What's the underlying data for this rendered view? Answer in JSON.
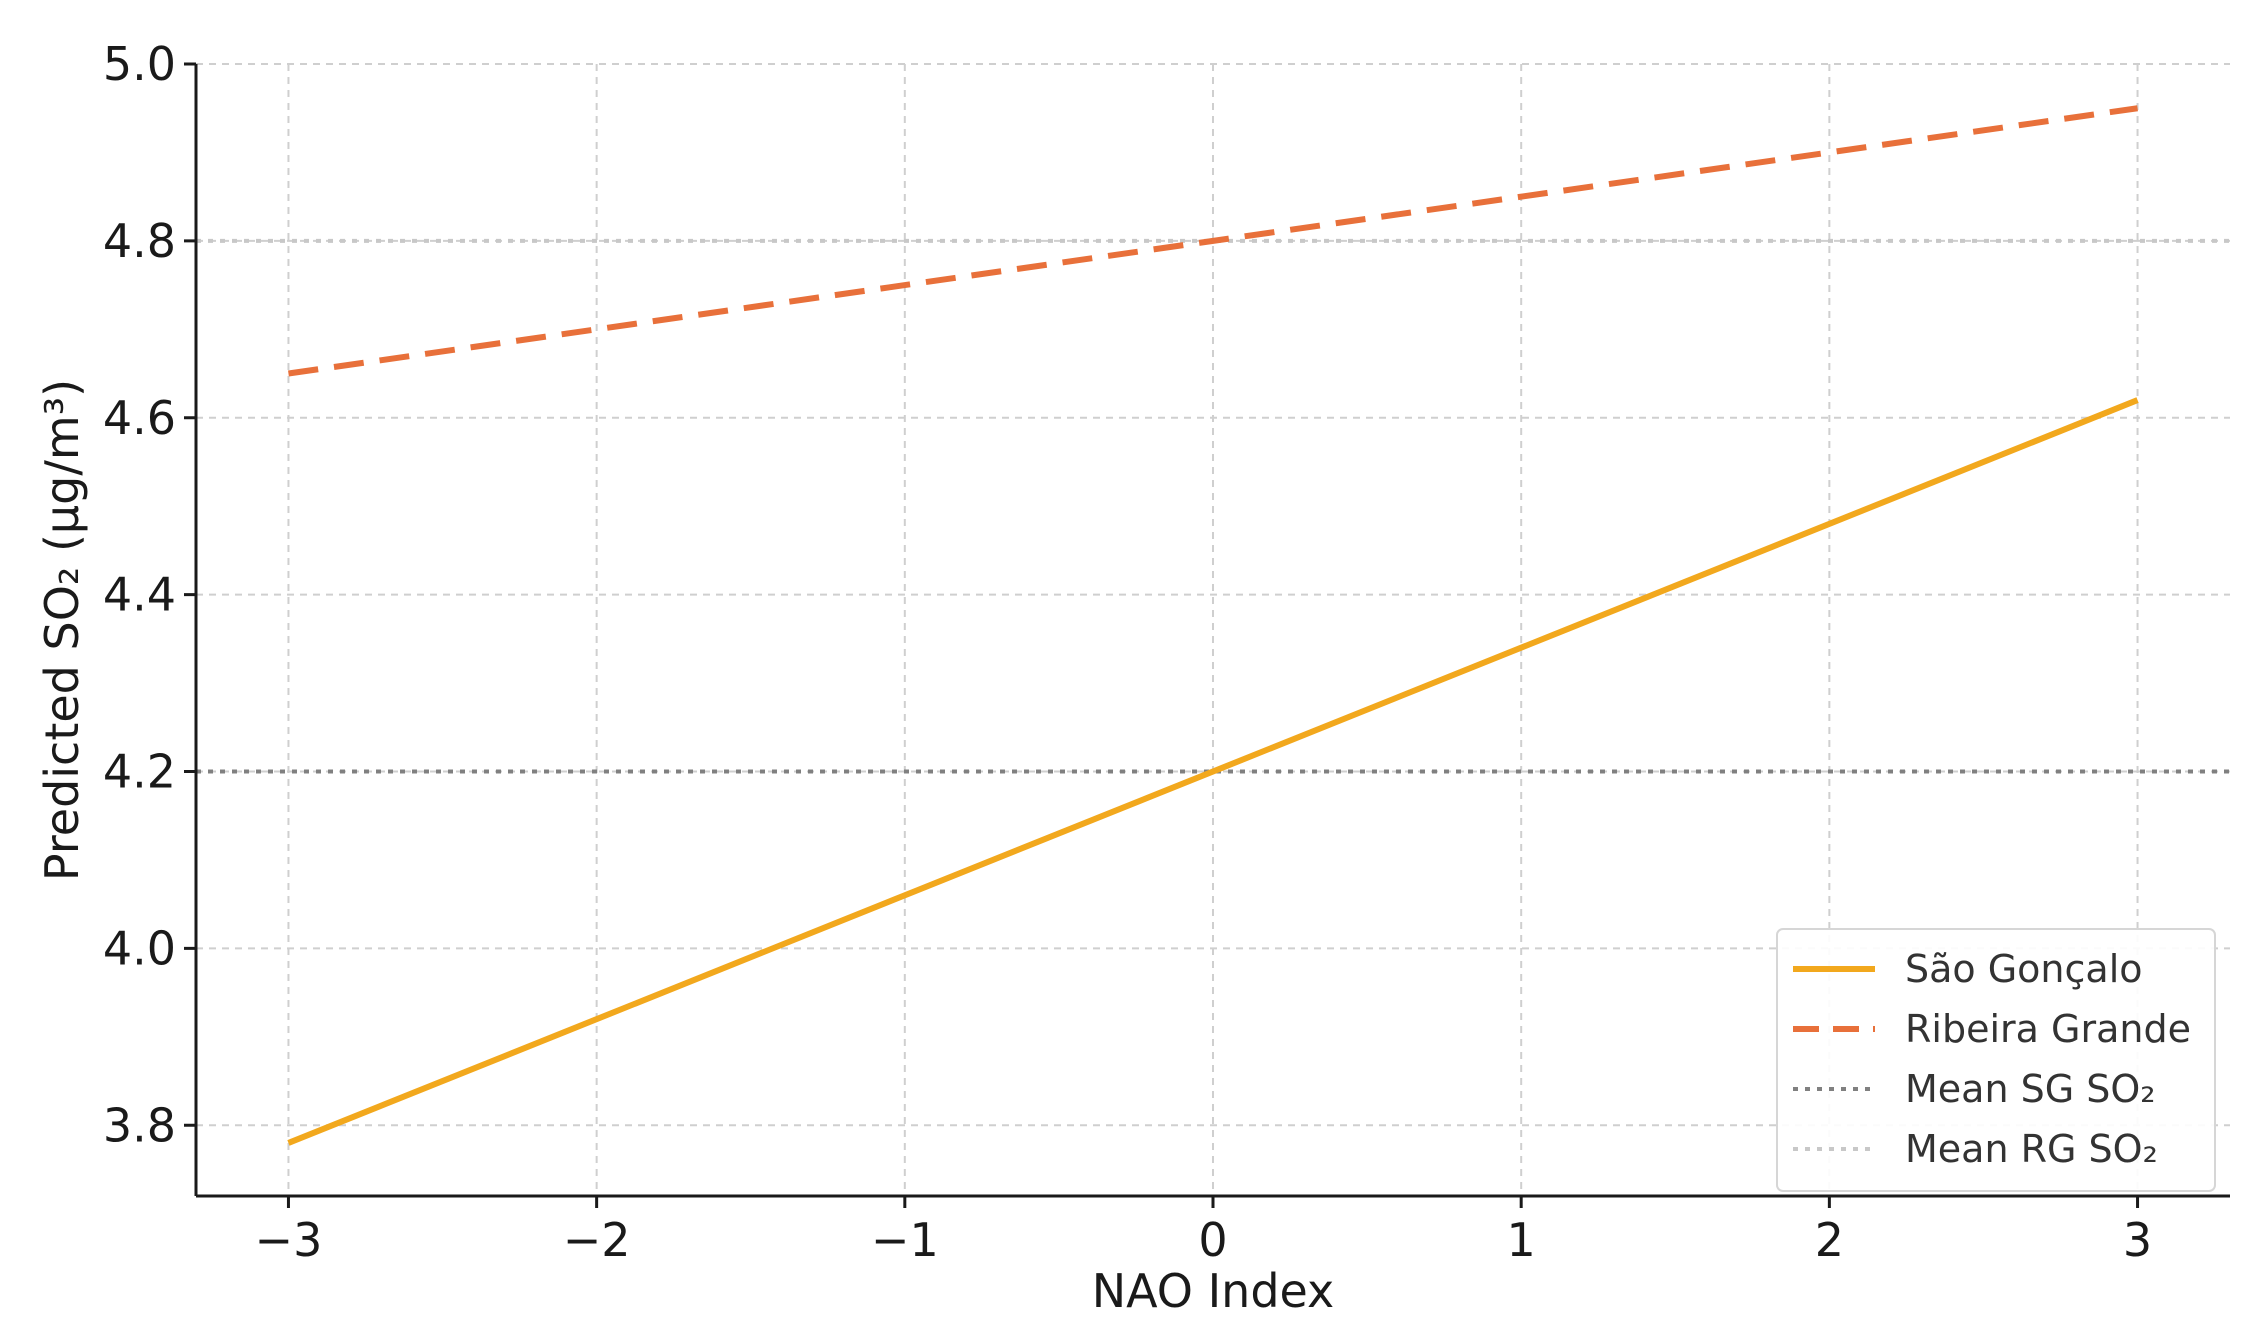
{
  "chart_data": {
    "type": "line",
    "title": "",
    "xlabel": "NAO Index",
    "ylabel": "Predicted SO₂ (µg/m³)",
    "xlim": [
      -3.3,
      3.3
    ],
    "ylim": [
      3.72,
      5.0
    ],
    "x_ticks": [
      -3,
      -2,
      -1,
      0,
      1,
      2,
      3
    ],
    "x_tick_labels": [
      "−3",
      "−2",
      "−1",
      "0",
      "1",
      "2",
      "3"
    ],
    "y_ticks": [
      3.8,
      4.0,
      4.2,
      4.4,
      4.6,
      4.8,
      5.0
    ],
    "y_tick_labels": [
      "3.8",
      "4.0",
      "4.2",
      "4.4",
      "4.6",
      "4.8",
      "5.0"
    ],
    "grid": true,
    "legend_position": "bottom-right",
    "series": [
      {
        "name": "São Gonçalo",
        "kind": "line",
        "style": "solid",
        "color": "#f2a81d",
        "x": [
          -3,
          3
        ],
        "y": [
          3.78,
          4.62
        ]
      },
      {
        "name": "Ribeira Grande",
        "kind": "line",
        "style": "dashed",
        "color": "#e8703a",
        "x": [
          -3,
          3
        ],
        "y": [
          4.65,
          4.95
        ]
      },
      {
        "name": "Mean SG SO₂",
        "kind": "hline",
        "style": "dotted",
        "color": "#808080",
        "y": 4.2
      },
      {
        "name": "Mean RG SO₂",
        "kind": "hline",
        "style": "dotted",
        "color": "#c8c8c8",
        "y": 4.8
      }
    ]
  }
}
